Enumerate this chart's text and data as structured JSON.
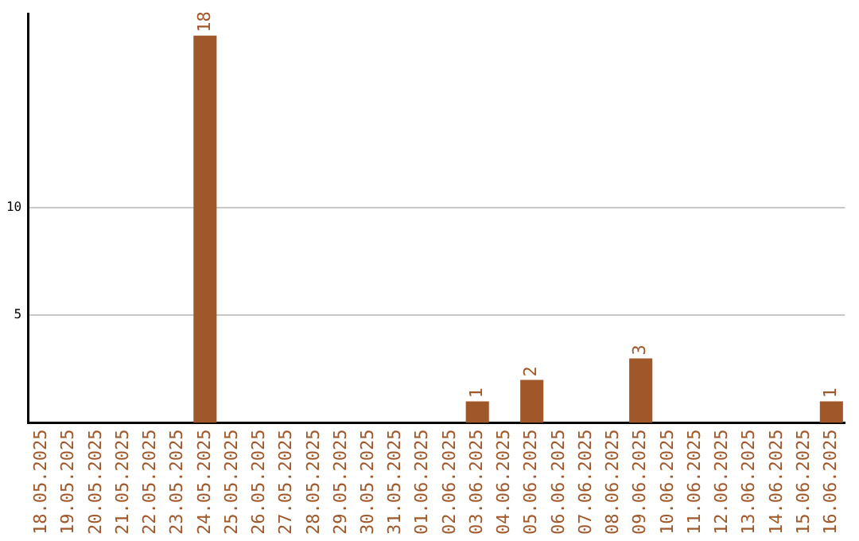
{
  "chart_data": {
    "type": "bar",
    "categories": [
      "18.05.2025",
      "19.05.2025",
      "20.05.2025",
      "21.05.2025",
      "22.05.2025",
      "23.05.2025",
      "24.05.2025",
      "25.05.2025",
      "26.05.2025",
      "27.05.2025",
      "28.05.2025",
      "29.05.2025",
      "30.05.2025",
      "31.05.2025",
      "01.06.2025",
      "02.06.2025",
      "03.06.2025",
      "04.06.2025",
      "05.06.2025",
      "06.06.2025",
      "07.06.2025",
      "08.06.2025",
      "09.06.2025",
      "10.06.2025",
      "11.06.2025",
      "12.06.2025",
      "13.06.2025",
      "14.06.2025",
      "15.06.2025",
      "16.06.2025"
    ],
    "values": [
      0,
      0,
      0,
      0,
      0,
      0,
      18,
      0,
      0,
      0,
      0,
      0,
      0,
      0,
      0,
      0,
      1,
      0,
      2,
      0,
      0,
      0,
      3,
      0,
      0,
      0,
      0,
      0,
      0,
      1
    ],
    "value_labels": [
      null,
      null,
      null,
      null,
      null,
      null,
      "18",
      null,
      null,
      null,
      null,
      null,
      null,
      null,
      null,
      null,
      "1",
      null,
      "2",
      null,
      null,
      null,
      "3",
      null,
      null,
      null,
      null,
      null,
      null,
      "1"
    ],
    "color": "#a0582a",
    "ylim": [
      0,
      19
    ],
    "yticks": [
      5,
      10
    ],
    "grid": "y",
    "legend": false
  }
}
